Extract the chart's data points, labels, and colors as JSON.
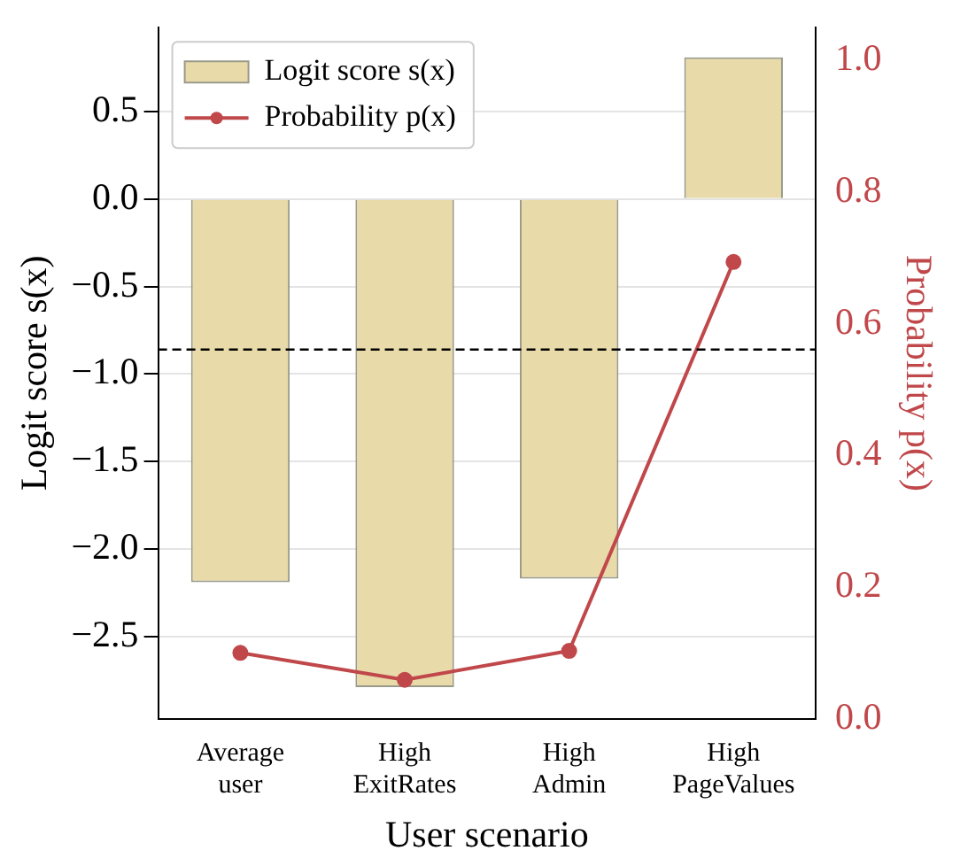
{
  "chart_data": {
    "type": "bar",
    "xlabel": "User scenario",
    "ylabel": "Logit score s(x)",
    "y2label": "Probability p(x)",
    "categories": [
      [
        "Average",
        "user"
      ],
      [
        "High",
        "ExitRates"
      ],
      [
        "High",
        "Admin"
      ],
      [
        "High",
        "PageValues"
      ]
    ],
    "series": [
      {
        "name": "Logit score s(x)",
        "color": "#e8daa9",
        "values": [
          -2.19,
          -2.79,
          -2.17,
          0.81
        ]
      },
      {
        "name": "Probability p(x)",
        "type": "line",
        "axis": "y2",
        "color": "#c0474a",
        "values": [
          0.1,
          0.059,
          0.103,
          0.694
        ]
      }
    ],
    "ylim": [
      -2.97,
      0.98
    ],
    "yticks": [
      {
        "value": -2.5,
        "label": "−2.5"
      },
      {
        "value": -2,
        "label": "−2.0"
      },
      {
        "value": -1.5,
        "label": "−1.5"
      },
      {
        "value": -1,
        "label": "−1.0"
      },
      {
        "value": -0.5,
        "label": "−0.5"
      },
      {
        "value": 0,
        "label": "0.0"
      },
      {
        "value": 0.5,
        "label": "0.5"
      }
    ],
    "y2lim": [
      0,
      1.05
    ],
    "y2ticks": [
      {
        "value": 0,
        "label": "0.0"
      },
      {
        "value": 0.2,
        "label": "0.2"
      },
      {
        "value": 0.4,
        "label": "0.4"
      },
      {
        "value": 0.6,
        "label": "0.6"
      },
      {
        "value": 0.8,
        "label": "0.8"
      },
      {
        "value": 1,
        "label": "1.0"
      }
    ],
    "ref_lines": [
      {
        "axis": "y",
        "value": -0.86,
        "color": "#000000",
        "line_style": "dashed"
      }
    ],
    "grid": "y",
    "legend": "top left",
    "marker": "circle"
  }
}
